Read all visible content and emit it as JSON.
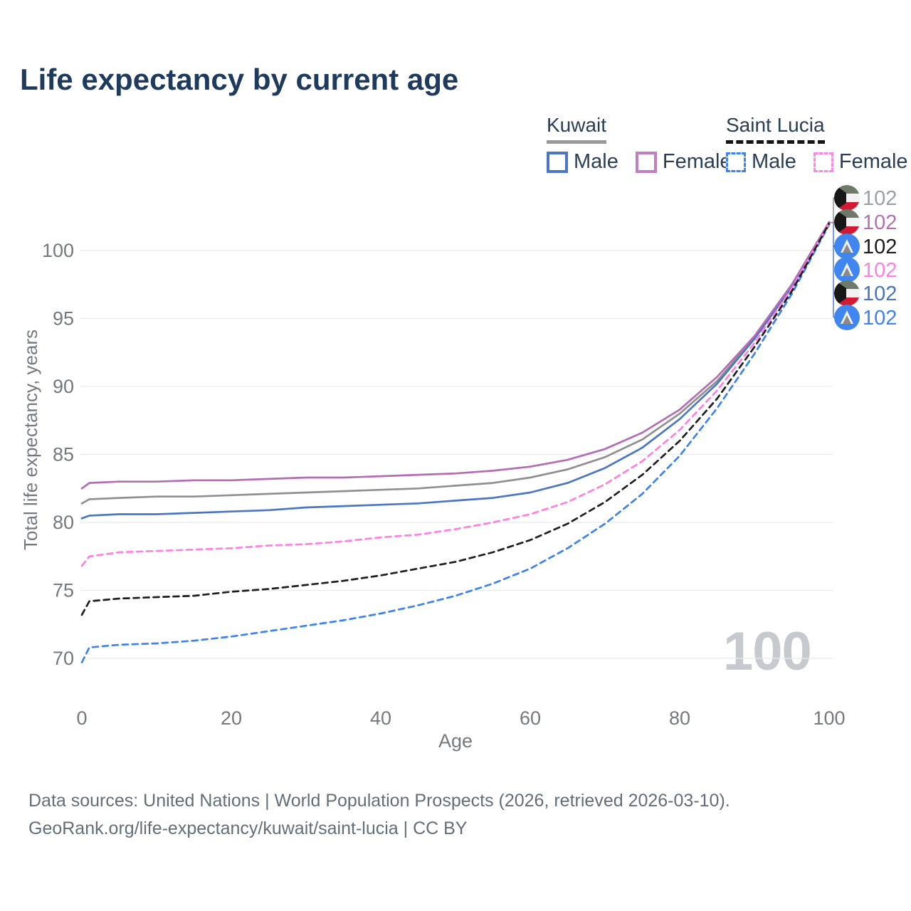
{
  "header": {
    "title": "Life expectancy by current age"
  },
  "legend": {
    "groups": [
      {
        "name": "Kuwait",
        "line_style": "solid",
        "underline_color": "#9a9a9a",
        "items": [
          {
            "label": "Male",
            "color": "#4b76c4",
            "dashed": false
          },
          {
            "label": "Female",
            "color": "#c07fc0",
            "dashed": false
          }
        ]
      },
      {
        "name": "Saint Lucia",
        "line_style": "dashed",
        "underline_color": "#141414",
        "items": [
          {
            "label": "Male",
            "color": "#3d82f0",
            "dashed": true
          },
          {
            "label": "Female",
            "color": "#ff85e6",
            "dashed": true
          }
        ]
      }
    ]
  },
  "chart_data": {
    "type": "line",
    "title": "Life expectancy by current age",
    "xlabel": "Age",
    "ylabel": "Total life expectancy, years",
    "x_ticks": [
      0,
      20,
      40,
      60,
      80,
      100
    ],
    "y_ticks": [
      70,
      75,
      80,
      85,
      90,
      95,
      100
    ],
    "xlim": [
      0,
      100
    ],
    "ylim": [
      69.5,
      102.6
    ],
    "grid": "horizontal",
    "gridline_color": "#e9eaec",
    "watermark": "100",
    "x": [
      0,
      1,
      5,
      10,
      15,
      20,
      25,
      30,
      35,
      40,
      45,
      50,
      55,
      60,
      65,
      70,
      75,
      80,
      85,
      90,
      95,
      100
    ],
    "series": [
      {
        "name": "Kuwait Both sexes",
        "country": "Kuwait",
        "sex": "Both",
        "color": "#909090",
        "label_color": "#9aa0a6",
        "dashed": false,
        "flag": "kw",
        "end_label": "102",
        "values": [
          81.4,
          81.7,
          81.8,
          81.9,
          81.9,
          82.0,
          82.1,
          82.2,
          82.3,
          82.4,
          82.5,
          82.7,
          82.9,
          83.3,
          83.9,
          84.8,
          86.1,
          88.0,
          90.4,
          93.6,
          97.4,
          102.1
        ]
      },
      {
        "name": "Kuwait Female",
        "country": "Kuwait",
        "sex": "Female",
        "color": "#b56cb4",
        "label_color": "#af74af",
        "dashed": false,
        "flag": "kw",
        "end_label": "102",
        "values": [
          82.5,
          82.9,
          83.0,
          83.0,
          83.1,
          83.1,
          83.2,
          83.3,
          83.3,
          83.4,
          83.5,
          83.6,
          83.8,
          84.1,
          84.6,
          85.4,
          86.6,
          88.3,
          90.7,
          93.7,
          97.5,
          102.1
        ]
      },
      {
        "name": "Saint Lucia Both sexes",
        "country": "Saint Lucia",
        "sex": "Both",
        "color": "#1f1f1f",
        "label_color": "#1a1a1a",
        "dashed": true,
        "flag": "lc",
        "end_label": "102",
        "values": [
          73.2,
          74.2,
          74.4,
          74.5,
          74.6,
          74.9,
          75.1,
          75.4,
          75.7,
          76.1,
          76.6,
          77.1,
          77.8,
          78.7,
          79.9,
          81.5,
          83.5,
          86.0,
          89.1,
          92.9,
          97.0,
          102.0
        ]
      },
      {
        "name": "Saint Lucia Female",
        "country": "Saint Lucia",
        "sex": "Female",
        "color": "#ff80e1",
        "label_color": "#ff80e1",
        "dashed": true,
        "flag": "lc",
        "end_label": "102",
        "values": [
          76.8,
          77.5,
          77.8,
          77.9,
          78.0,
          78.1,
          78.3,
          78.4,
          78.6,
          78.9,
          79.1,
          79.5,
          80.0,
          80.6,
          81.5,
          82.8,
          84.5,
          86.8,
          89.7,
          93.2,
          97.2,
          102.0
        ]
      },
      {
        "name": "Kuwait Male",
        "country": "Kuwait",
        "sex": "Male",
        "color": "#4b76c4",
        "label_color": "#4a73c0",
        "dashed": false,
        "flag": "kw",
        "end_label": "102",
        "values": [
          80.3,
          80.5,
          80.6,
          80.6,
          80.7,
          80.8,
          80.9,
          81.1,
          81.2,
          81.3,
          81.4,
          81.6,
          81.8,
          82.2,
          82.9,
          84.0,
          85.5,
          87.6,
          90.2,
          93.5,
          97.3,
          102.0
        ]
      },
      {
        "name": "Saint Lucia Male",
        "country": "Saint Lucia",
        "sex": "Male",
        "color": "#3d82f0",
        "label_color": "#3d82f0",
        "dashed": true,
        "flag": "lc",
        "end_label": "102",
        "values": [
          69.7,
          70.8,
          71.0,
          71.1,
          71.3,
          71.6,
          72.0,
          72.4,
          72.8,
          73.3,
          73.9,
          74.6,
          75.5,
          76.6,
          78.1,
          79.9,
          82.1,
          84.9,
          88.4,
          92.4,
          96.8,
          101.9
        ]
      }
    ],
    "legend_position": "top-right"
  },
  "footer": {
    "line1": "Data sources: United Nations | World Population Prospects (2026, retrieved 2026-03-10).",
    "line2": "GeoRank.org/life-expectancy/kuwait/saint-lucia | CC BY"
  }
}
